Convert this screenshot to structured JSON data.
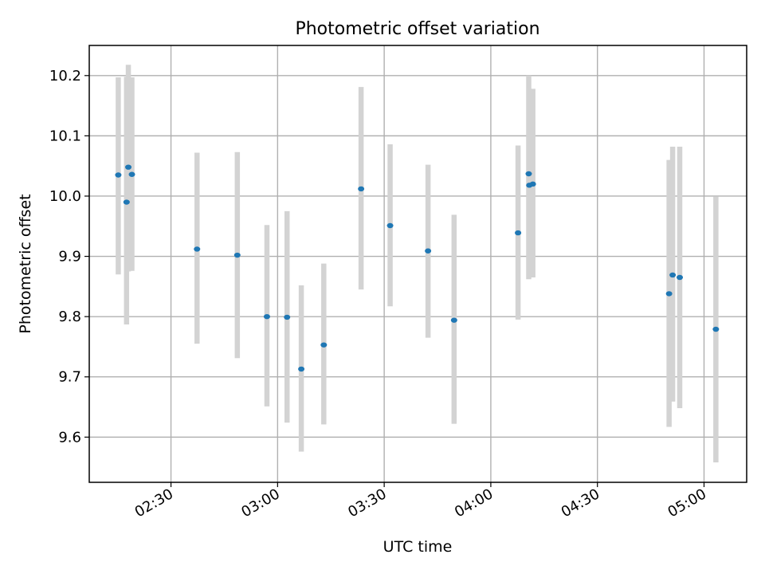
{
  "chart_data": {
    "type": "scatter",
    "title": "Photometric offset variation",
    "xlabel": "UTC time",
    "ylabel": "Photometric offset",
    "x_tick_labels": [
      "02:30",
      "03:00",
      "03:30",
      "04:00",
      "04:30",
      "05:00"
    ],
    "x_ticks": [
      "02:30",
      "03:00",
      "03:30",
      "04:00",
      "04:30",
      "05:00"
    ],
    "xlim": [
      "02:07",
      "05:12"
    ],
    "y_ticks": [
      9.6,
      9.7,
      9.8,
      9.9,
      10.0,
      10.1,
      10.2
    ],
    "y_tick_labels": [
      "9.6",
      "9.7",
      "9.8",
      "9.9",
      "10.0",
      "10.1",
      "10.2"
    ],
    "ylim": [
      9.525,
      10.25
    ],
    "grid": true,
    "colors": {
      "points": "#1f77b4",
      "errorbars": "#d3d3d3",
      "grid": "#b0b0b0"
    },
    "series": [
      {
        "x": [
          "02:15:10",
          "02:17:30",
          "02:18:00",
          "02:19:00",
          "02:37:20",
          "02:48:40",
          "02:57:00",
          "03:02:40",
          "03:06:40",
          "03:13:00",
          "03:23:30",
          "03:31:40",
          "03:42:20",
          "03:49:40",
          "04:07:40",
          "04:10:40",
          "04:10:50",
          "04:11:50",
          "04:50:10",
          "04:51:10",
          "04:53:10",
          "05:03:20"
        ],
        "y": [
          10.035,
          9.99,
          10.048,
          10.036,
          9.912,
          9.902,
          9.8,
          9.799,
          9.713,
          9.753,
          10.012,
          9.951,
          9.909,
          9.794,
          9.939,
          10.037,
          10.018,
          10.02,
          9.838,
          9.869,
          9.865,
          9.779
        ],
        "yerr_low": [
          9.87,
          9.787,
          9.875,
          9.876,
          9.755,
          9.731,
          9.651,
          9.624,
          9.576,
          9.621,
          9.845,
          9.817,
          9.765,
          9.622,
          9.795,
          9.862,
          9.865,
          9.865,
          9.617,
          9.659,
          9.648,
          9.558
        ],
        "yerr_high": [
          10.197,
          10.198,
          10.218,
          10.197,
          10.072,
          10.073,
          9.952,
          9.975,
          9.852,
          9.888,
          10.181,
          10.086,
          10.052,
          9.969,
          10.084,
          10.2,
          10.178,
          10.178,
          10.06,
          10.082,
          10.082,
          9.999
        ]
      }
    ]
  }
}
